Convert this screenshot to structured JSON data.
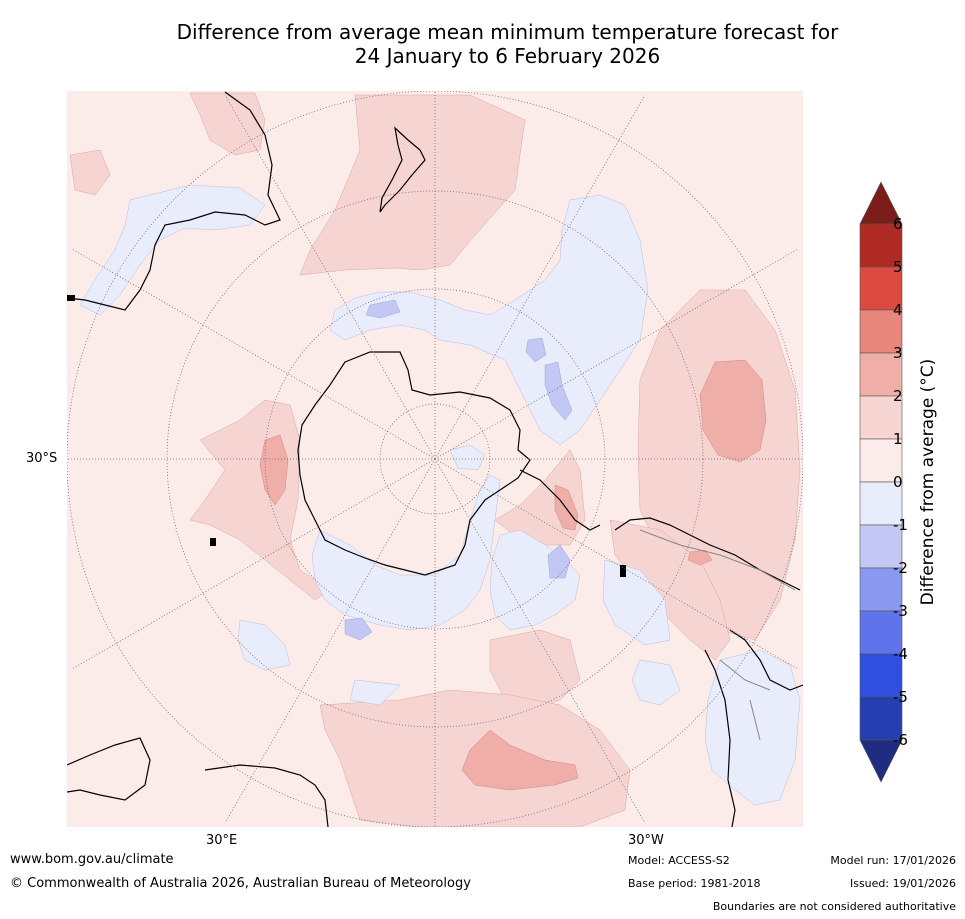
{
  "title": {
    "line1": "Difference from average mean minimum temperature forecast for",
    "line2": "24 January to 6 February 2026"
  },
  "map": {
    "projection": "south-polar stereographic",
    "lat_labels": [
      "30°S"
    ],
    "lon_labels": [
      "30°E",
      "30°W"
    ]
  },
  "colorbar": {
    "label": "Difference from average (°C)",
    "ticks": [
      "6",
      "5",
      "4",
      "3",
      "2",
      "1",
      "0",
      "-1",
      "-2",
      "-3",
      "-4",
      "-5",
      "-6"
    ],
    "bins": [
      {
        "range": "above 6",
        "color": "#7b1e1a"
      },
      {
        "range": "5 to 6",
        "color": "#ae2a22"
      },
      {
        "range": "4 to 5",
        "color": "#db4a40"
      },
      {
        "range": "3 to 4",
        "color": "#e8867c"
      },
      {
        "range": "2 to 3",
        "color": "#efaea8"
      },
      {
        "range": "1 to 2",
        "color": "#f5d4d2"
      },
      {
        "range": "0 to 1",
        "color": "#fbecea"
      },
      {
        "range": "-1 to 0",
        "color": "#e8ecfb"
      },
      {
        "range": "-2 to -1",
        "color": "#c2c8f3"
      },
      {
        "range": "-3 to -2",
        "color": "#8a99ef"
      },
      {
        "range": "-4 to -3",
        "color": "#5f74ea"
      },
      {
        "range": "-5 to -4",
        "color": "#2f4fe0"
      },
      {
        "range": "-6 to -5",
        "color": "#253fb0"
      },
      {
        "range": "below -6",
        "color": "#1f2c80"
      }
    ]
  },
  "footer": {
    "website": "www.bom.gov.au/climate",
    "copyright": "© Commonwealth of Australia 2026, Australian Bureau of Meteorology",
    "model": "Model: ACCESS-S2",
    "base_period": "Base period: 1981-2018",
    "model_run": "Model run: 17/01/2026",
    "issued": "Issued: 19/01/2026",
    "disclaimer": "Boundaries are not considered authoritative"
  }
}
